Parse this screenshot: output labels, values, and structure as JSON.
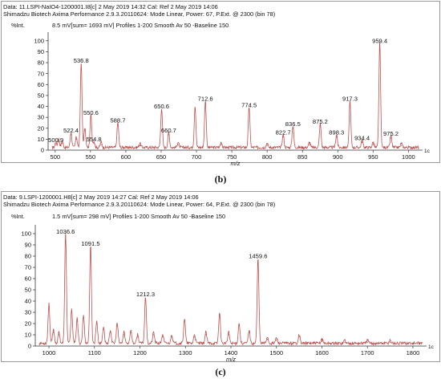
{
  "panels": [
    {
      "label": "(b)",
      "header_line1": "Data: 11.LSPI-NaIO4-1200001.I8[c] 2 May 2019 14:32 Cal: Ref 2 May 2019 14:06",
      "header_line2": "Shimadzu Biotech Axima Performance 2.9.3.20110624: Mode Linear, Power: 67, P.Ext. @ 2300 (bin 78)",
      "intensity_label": "%Int.",
      "scan_info": "8.5 mV[sum= 1693 mV]  Profiles 1-200 Smooth Av 50 -Baseline 150",
      "axis_end_label": "1c",
      "xlabel": "m/z"
    },
    {
      "label": "(c)",
      "header_line1": "Data: 9.LSPI-1200001.H8[c] 2 May 2019 14:27 Cal: Ref 2 May 2019 14:06",
      "header_line2": "Shimadzu Biotech Axima Performance 2.9.3.20110624: Mode Linear, Power: 64, P.Ext. @ 2300 (bin 78)",
      "intensity_label": "%Int.",
      "scan_info": "1.5 mV[sum= 298 mV]  Profiles 1-200 Smooth Av 50 -Baseline 150",
      "axis_end_label": "1c",
      "xlabel": "m/z"
    }
  ],
  "chart_data": [
    {
      "type": "line",
      "title": "",
      "xlabel": "m/z",
      "ylabel": "%Int.",
      "xlim": [
        490,
        1020
      ],
      "ylim": [
        0,
        105
      ],
      "xticks": [
        500,
        550,
        600,
        650,
        700,
        750,
        800,
        850,
        900,
        950,
        1000
      ],
      "yticks": [
        0,
        10,
        20,
        30,
        40,
        50,
        60,
        70,
        80,
        90,
        100
      ],
      "line_color": "#c0504d",
      "peaks": [
        {
          "x": 500.9,
          "y": 5,
          "label": "500.9"
        },
        {
          "x": 505,
          "y": 8
        },
        {
          "x": 510,
          "y": 6
        },
        {
          "x": 522.4,
          "y": 14,
          "label": "522.4"
        },
        {
          "x": 530,
          "y": 10
        },
        {
          "x": 536.8,
          "y": 78,
          "label": "536.8"
        },
        {
          "x": 542,
          "y": 18
        },
        {
          "x": 550.6,
          "y": 30,
          "label": "550.6"
        },
        {
          "x": 554.8,
          "y": 6,
          "label": "554.8"
        },
        {
          "x": 565,
          "y": 5
        },
        {
          "x": 588.7,
          "y": 23,
          "label": "588.7"
        },
        {
          "x": 620,
          "y": 4
        },
        {
          "x": 650.6,
          "y": 36,
          "label": "650.6"
        },
        {
          "x": 660.7,
          "y": 14,
          "label": "660.7"
        },
        {
          "x": 674,
          "y": 5
        },
        {
          "x": 698,
          "y": 38
        },
        {
          "x": 712.6,
          "y": 43,
          "label": "712.6"
        },
        {
          "x": 735,
          "y": 5
        },
        {
          "x": 774.5,
          "y": 37,
          "label": "774.5"
        },
        {
          "x": 800,
          "y": 4
        },
        {
          "x": 822.7,
          "y": 12,
          "label": "822.7"
        },
        {
          "x": 836.5,
          "y": 20,
          "label": "836.5"
        },
        {
          "x": 860,
          "y": 5
        },
        {
          "x": 875.2,
          "y": 22,
          "label": "875.2"
        },
        {
          "x": 898.3,
          "y": 12,
          "label": "898.3"
        },
        {
          "x": 917.3,
          "y": 43,
          "label": "917.3"
        },
        {
          "x": 934.4,
          "y": 7,
          "label": "934.4"
        },
        {
          "x": 950,
          "y": 5
        },
        {
          "x": 959.4,
          "y": 96,
          "label": "959.4"
        },
        {
          "x": 975.2,
          "y": 11,
          "label": "975.2"
        },
        {
          "x": 990,
          "y": 4
        }
      ]
    },
    {
      "type": "line",
      "title": "",
      "xlabel": "m/z",
      "ylabel": "%Int.",
      "xlim": [
        970,
        1830
      ],
      "ylim": [
        0,
        105
      ],
      "xticks": [
        1000,
        1100,
        1200,
        1300,
        1400,
        1500,
        1600,
        1700,
        1800
      ],
      "yticks": [
        0,
        10,
        20,
        30,
        40,
        50,
        60,
        70,
        80,
        90,
        100
      ],
      "line_color": "#c0504d",
      "peaks": [
        {
          "x": 1000,
          "y": 35
        },
        {
          "x": 1010,
          "y": 12
        },
        {
          "x": 1022,
          "y": 10
        },
        {
          "x": 1036.6,
          "y": 98,
          "label": "1036.6"
        },
        {
          "x": 1050,
          "y": 30
        },
        {
          "x": 1062,
          "y": 22
        },
        {
          "x": 1076,
          "y": 25
        },
        {
          "x": 1091.5,
          "y": 87,
          "label": "1091.5"
        },
        {
          "x": 1105,
          "y": 20
        },
        {
          "x": 1120,
          "y": 15
        },
        {
          "x": 1135,
          "y": 12
        },
        {
          "x": 1150,
          "y": 18
        },
        {
          "x": 1165,
          "y": 10
        },
        {
          "x": 1180,
          "y": 12
        },
        {
          "x": 1195,
          "y": 8
        },
        {
          "x": 1212.3,
          "y": 42,
          "label": "1212.3"
        },
        {
          "x": 1230,
          "y": 10
        },
        {
          "x": 1250,
          "y": 8
        },
        {
          "x": 1270,
          "y": 8
        },
        {
          "x": 1298,
          "y": 22
        },
        {
          "x": 1320,
          "y": 8
        },
        {
          "x": 1345,
          "y": 10
        },
        {
          "x": 1375,
          "y": 27
        },
        {
          "x": 1395,
          "y": 10
        },
        {
          "x": 1418,
          "y": 18
        },
        {
          "x": 1440,
          "y": 12
        },
        {
          "x": 1459.6,
          "y": 76,
          "label": "1459.6"
        },
        {
          "x": 1480,
          "y": 6
        },
        {
          "x": 1500,
          "y": 5
        },
        {
          "x": 1550,
          "y": 8
        },
        {
          "x": 1600,
          "y": 4
        },
        {
          "x": 1650,
          "y": 3
        },
        {
          "x": 1700,
          "y": 3
        },
        {
          "x": 1750,
          "y": 3
        }
      ]
    }
  ]
}
